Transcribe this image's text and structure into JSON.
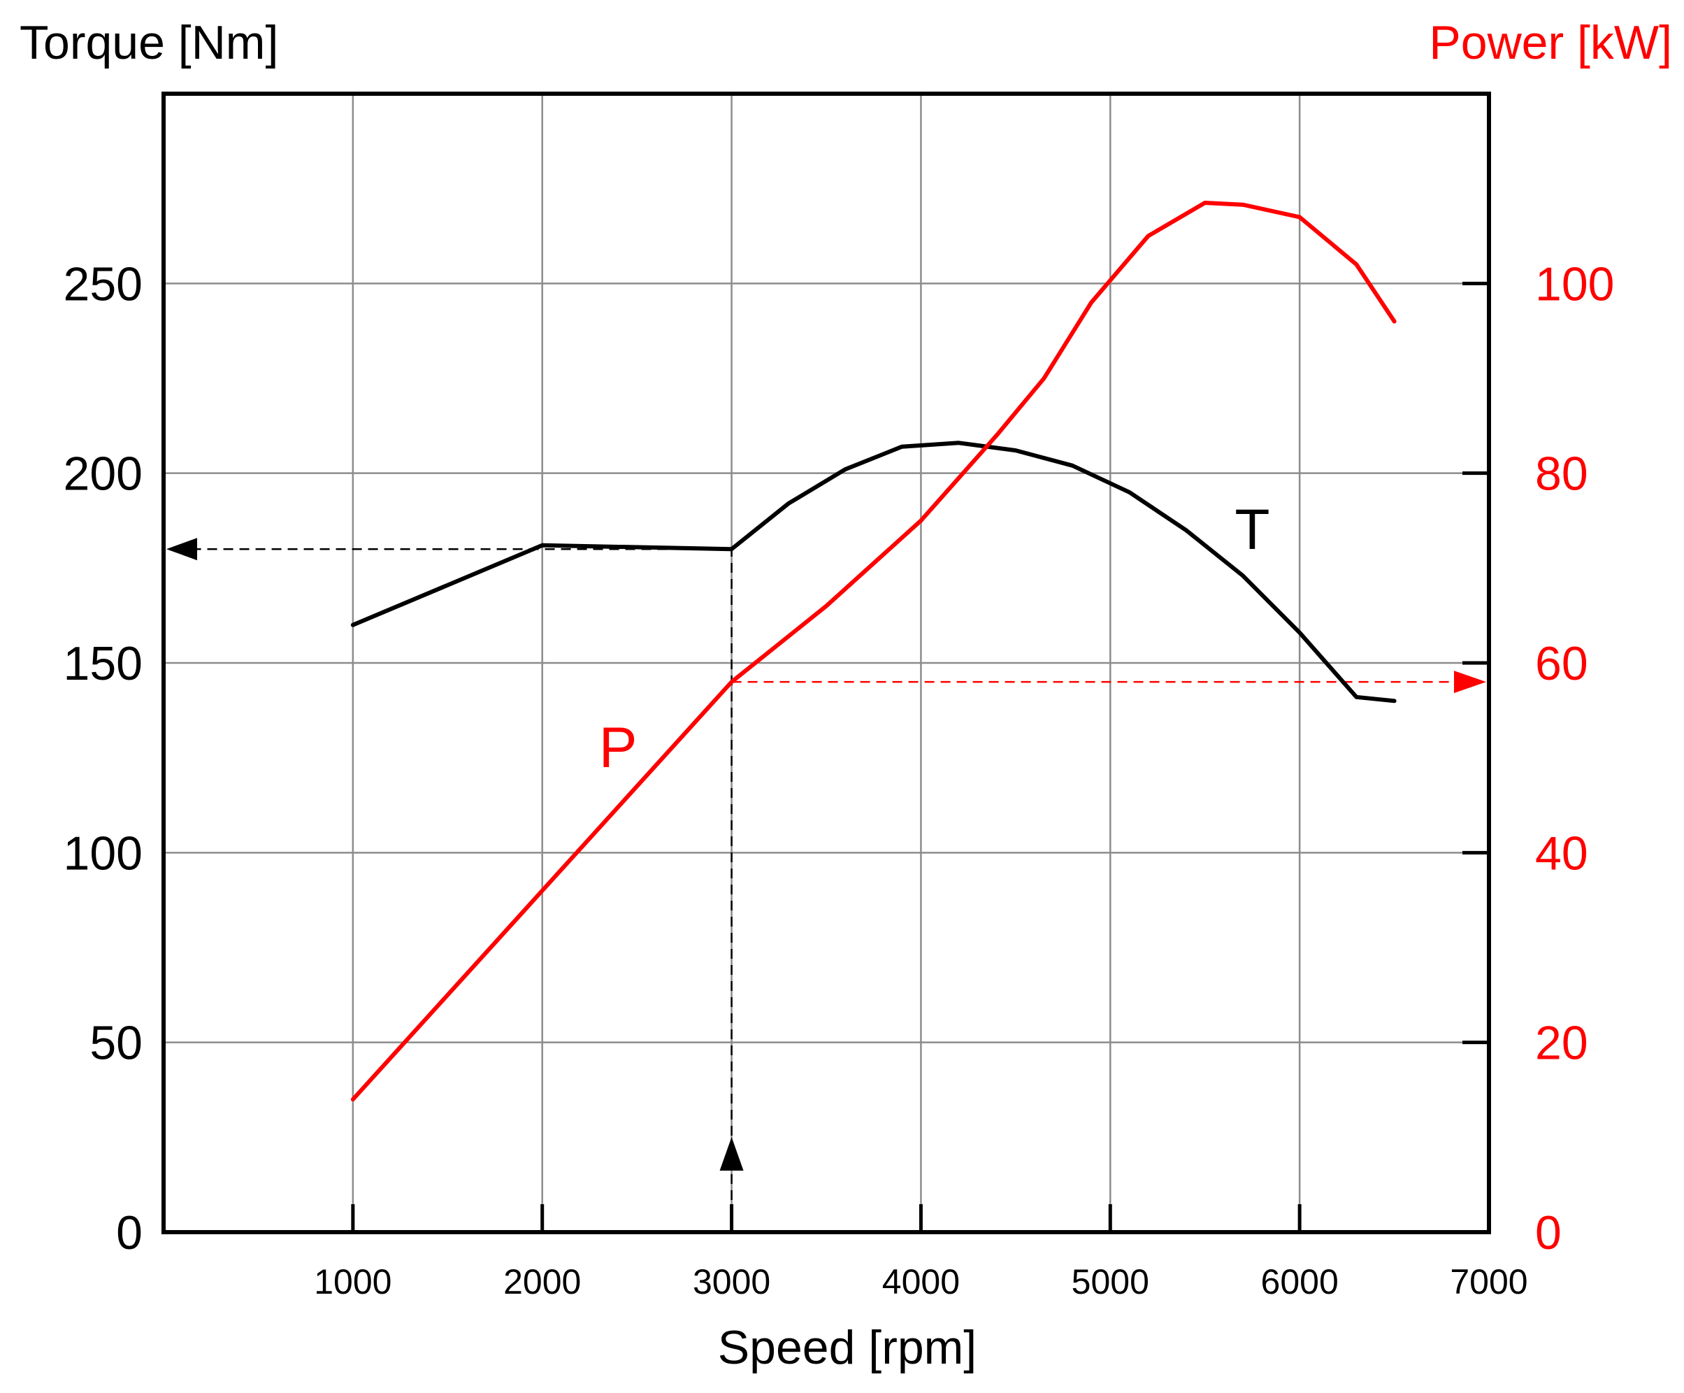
{
  "chart_data": {
    "type": "line",
    "xlabel": "Speed [rpm]",
    "ylabel_left": "Torque [Nm]",
    "ylabel_right": "Power [kW]",
    "xlim": [
      0,
      7000
    ],
    "ylim_left": [
      0,
      300
    ],
    "ylim_right": [
      0,
      120
    ],
    "x_ticks": [
      "1000",
      "2000",
      "3000",
      "4000",
      "5000",
      "6000",
      "7000"
    ],
    "y_ticks_left": [
      "0",
      "50",
      "100",
      "150",
      "200",
      "250"
    ],
    "y_ticks_right": [
      "0",
      "20",
      "40",
      "60",
      "80",
      "100"
    ],
    "grid": true,
    "series": [
      {
        "name": "T",
        "axis": "left",
        "color": "#000000",
        "x": [
          1000,
          2000,
          3000,
          3300,
          3600,
          3900,
          4200,
          4500,
          4800,
          5100,
          5400,
          5700,
          6000,
          6300,
          6500
        ],
        "y": [
          160,
          181,
          180,
          192,
          201,
          207,
          208,
          206,
          202,
          195,
          185,
          173,
          158,
          141,
          140
        ]
      },
      {
        "name": "P",
        "axis": "right",
        "color": "#ff0000",
        "x": [
          1000,
          2000,
          3000,
          3500,
          4000,
          4400,
          4650,
          4900,
          5200,
          5500,
          5700,
          6000,
          6300,
          6500
        ],
        "y": [
          14,
          36,
          58,
          66,
          75,
          84,
          90,
          98,
          105,
          108.5,
          108.3,
          107,
          102,
          96
        ]
      }
    ],
    "annotations": [
      {
        "text": "T",
        "color": "#000000"
      },
      {
        "text": "P",
        "color": "#ff0000"
      }
    ],
    "reference": {
      "speed": 3000,
      "torque": 180,
      "power": 58
    }
  }
}
